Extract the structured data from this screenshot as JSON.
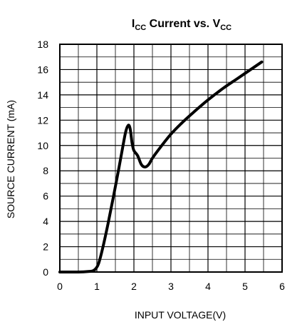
{
  "chart_data": {
    "type": "line",
    "title": {
      "parts": [
        "I",
        "CC",
        " Current vs. V",
        "CC"
      ]
    },
    "xlabel": "INPUT VOLTAGE(V)",
    "ylabel": "SOURCE CURRENT (mA)",
    "xlim": [
      0,
      6
    ],
    "ylim": [
      0,
      18
    ],
    "x_ticks": [
      0,
      1,
      2,
      3,
      4,
      5,
      6
    ],
    "y_ticks": [
      0,
      2,
      4,
      6,
      8,
      10,
      12,
      14,
      16,
      18
    ],
    "grid": true,
    "series": [
      {
        "color": "#000000",
        "x": [
          0.0,
          0.5,
          0.8,
          0.9,
          0.98,
          1.05,
          1.15,
          1.3,
          1.45,
          1.6,
          1.7,
          1.78,
          1.85,
          1.9,
          1.95,
          2.0,
          2.1,
          2.2,
          2.3,
          2.4,
          2.5,
          2.7,
          3.0,
          3.3,
          3.6,
          4.0,
          4.4,
          4.8,
          5.2,
          5.45
        ],
        "y": [
          0.0,
          0.0,
          0.05,
          0.1,
          0.3,
          0.7,
          1.8,
          3.8,
          6.0,
          8.3,
          9.9,
          11.1,
          11.6,
          11.3,
          10.2,
          9.6,
          9.2,
          8.5,
          8.3,
          8.5,
          9.0,
          9.8,
          10.9,
          11.8,
          12.6,
          13.6,
          14.5,
          15.3,
          16.1,
          16.6
        ]
      }
    ]
  }
}
